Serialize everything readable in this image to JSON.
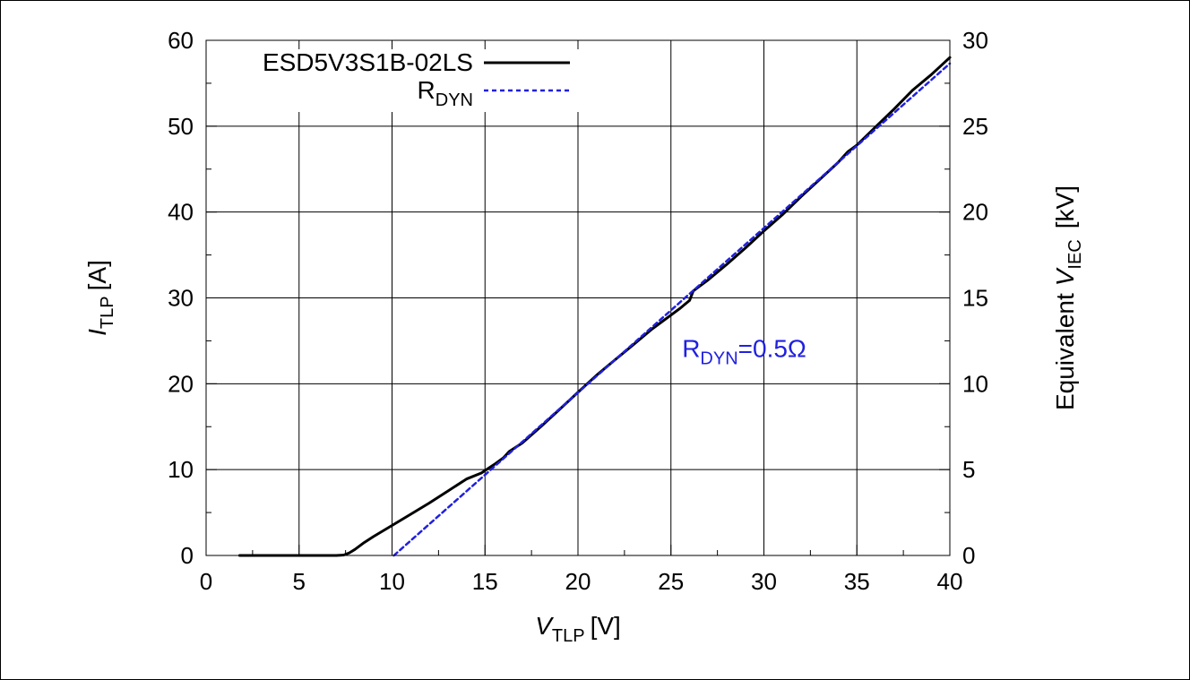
{
  "chart_data": {
    "type": "line",
    "xlabel": {
      "symbol": "V",
      "sub": "TLP",
      "unit": "[V]"
    },
    "ylabel": {
      "symbol": "I",
      "sub": "TLP",
      "unit": "[A]"
    },
    "y2label": {
      "prefix": "Equivalent",
      "symbol": "V",
      "sub": "IEC",
      "unit": "[kV]"
    },
    "xlim": [
      0,
      40
    ],
    "ylim": [
      0,
      60
    ],
    "y2lim": [
      0,
      30
    ],
    "xticks": [
      0,
      5,
      10,
      15,
      20,
      25,
      30,
      35,
      40
    ],
    "yticks": [
      0,
      10,
      20,
      30,
      40,
      50,
      60
    ],
    "y2ticks": [
      0,
      5,
      10,
      15,
      20,
      25,
      30
    ],
    "grid": true,
    "legend_position": "top-left",
    "series": [
      {
        "name": "ESD5V3S1B-02LS",
        "style": "solid",
        "color": "#000000",
        "points": [
          [
            1.8,
            0
          ],
          [
            3,
            0
          ],
          [
            5,
            0
          ],
          [
            7,
            0
          ],
          [
            7.4,
            0.05
          ],
          [
            7.7,
            0.3
          ],
          [
            8,
            0.7
          ],
          [
            8.5,
            1.5
          ],
          [
            9,
            2.2
          ],
          [
            10,
            3.5
          ],
          [
            11,
            4.8
          ],
          [
            12,
            6.1
          ],
          [
            13,
            7.5
          ],
          [
            14,
            8.9
          ],
          [
            14.8,
            9.6
          ],
          [
            15.5,
            10.6
          ],
          [
            16,
            11.4
          ],
          [
            16.3,
            12.1
          ],
          [
            17,
            13.1
          ],
          [
            18,
            15.0
          ],
          [
            19,
            17.0
          ],
          [
            20,
            19.0
          ],
          [
            21,
            21.0
          ],
          [
            22,
            22.8
          ],
          [
            23,
            24.6
          ],
          [
            24,
            26.4
          ],
          [
            25,
            28.0
          ],
          [
            25.5,
            28.8
          ],
          [
            26,
            29.7
          ],
          [
            26.2,
            30.8
          ],
          [
            26.5,
            31.3
          ],
          [
            27,
            32.1
          ],
          [
            28,
            33.9
          ],
          [
            29,
            35.8
          ],
          [
            30,
            37.8
          ],
          [
            31,
            39.7
          ],
          [
            32,
            41.8
          ],
          [
            33,
            43.8
          ],
          [
            34,
            45.8
          ],
          [
            34.5,
            47.0
          ],
          [
            35,
            47.8
          ],
          [
            36,
            49.9
          ],
          [
            37,
            52.0
          ],
          [
            38,
            54.2
          ],
          [
            39,
            56.0
          ],
          [
            40,
            58.0
          ]
        ]
      },
      {
        "name": "R",
        "sub": "DYN",
        "style": "dashed",
        "color": "#2020e0",
        "points": [
          [
            10.1,
            0
          ],
          [
            40,
            57.3
          ]
        ]
      }
    ],
    "annotations": [
      {
        "text": "R",
        "sub": "DYN",
        "suffix": "=0.5Ω",
        "x": 25.6,
        "y": 23.1,
        "color": "#2020e0"
      }
    ]
  }
}
